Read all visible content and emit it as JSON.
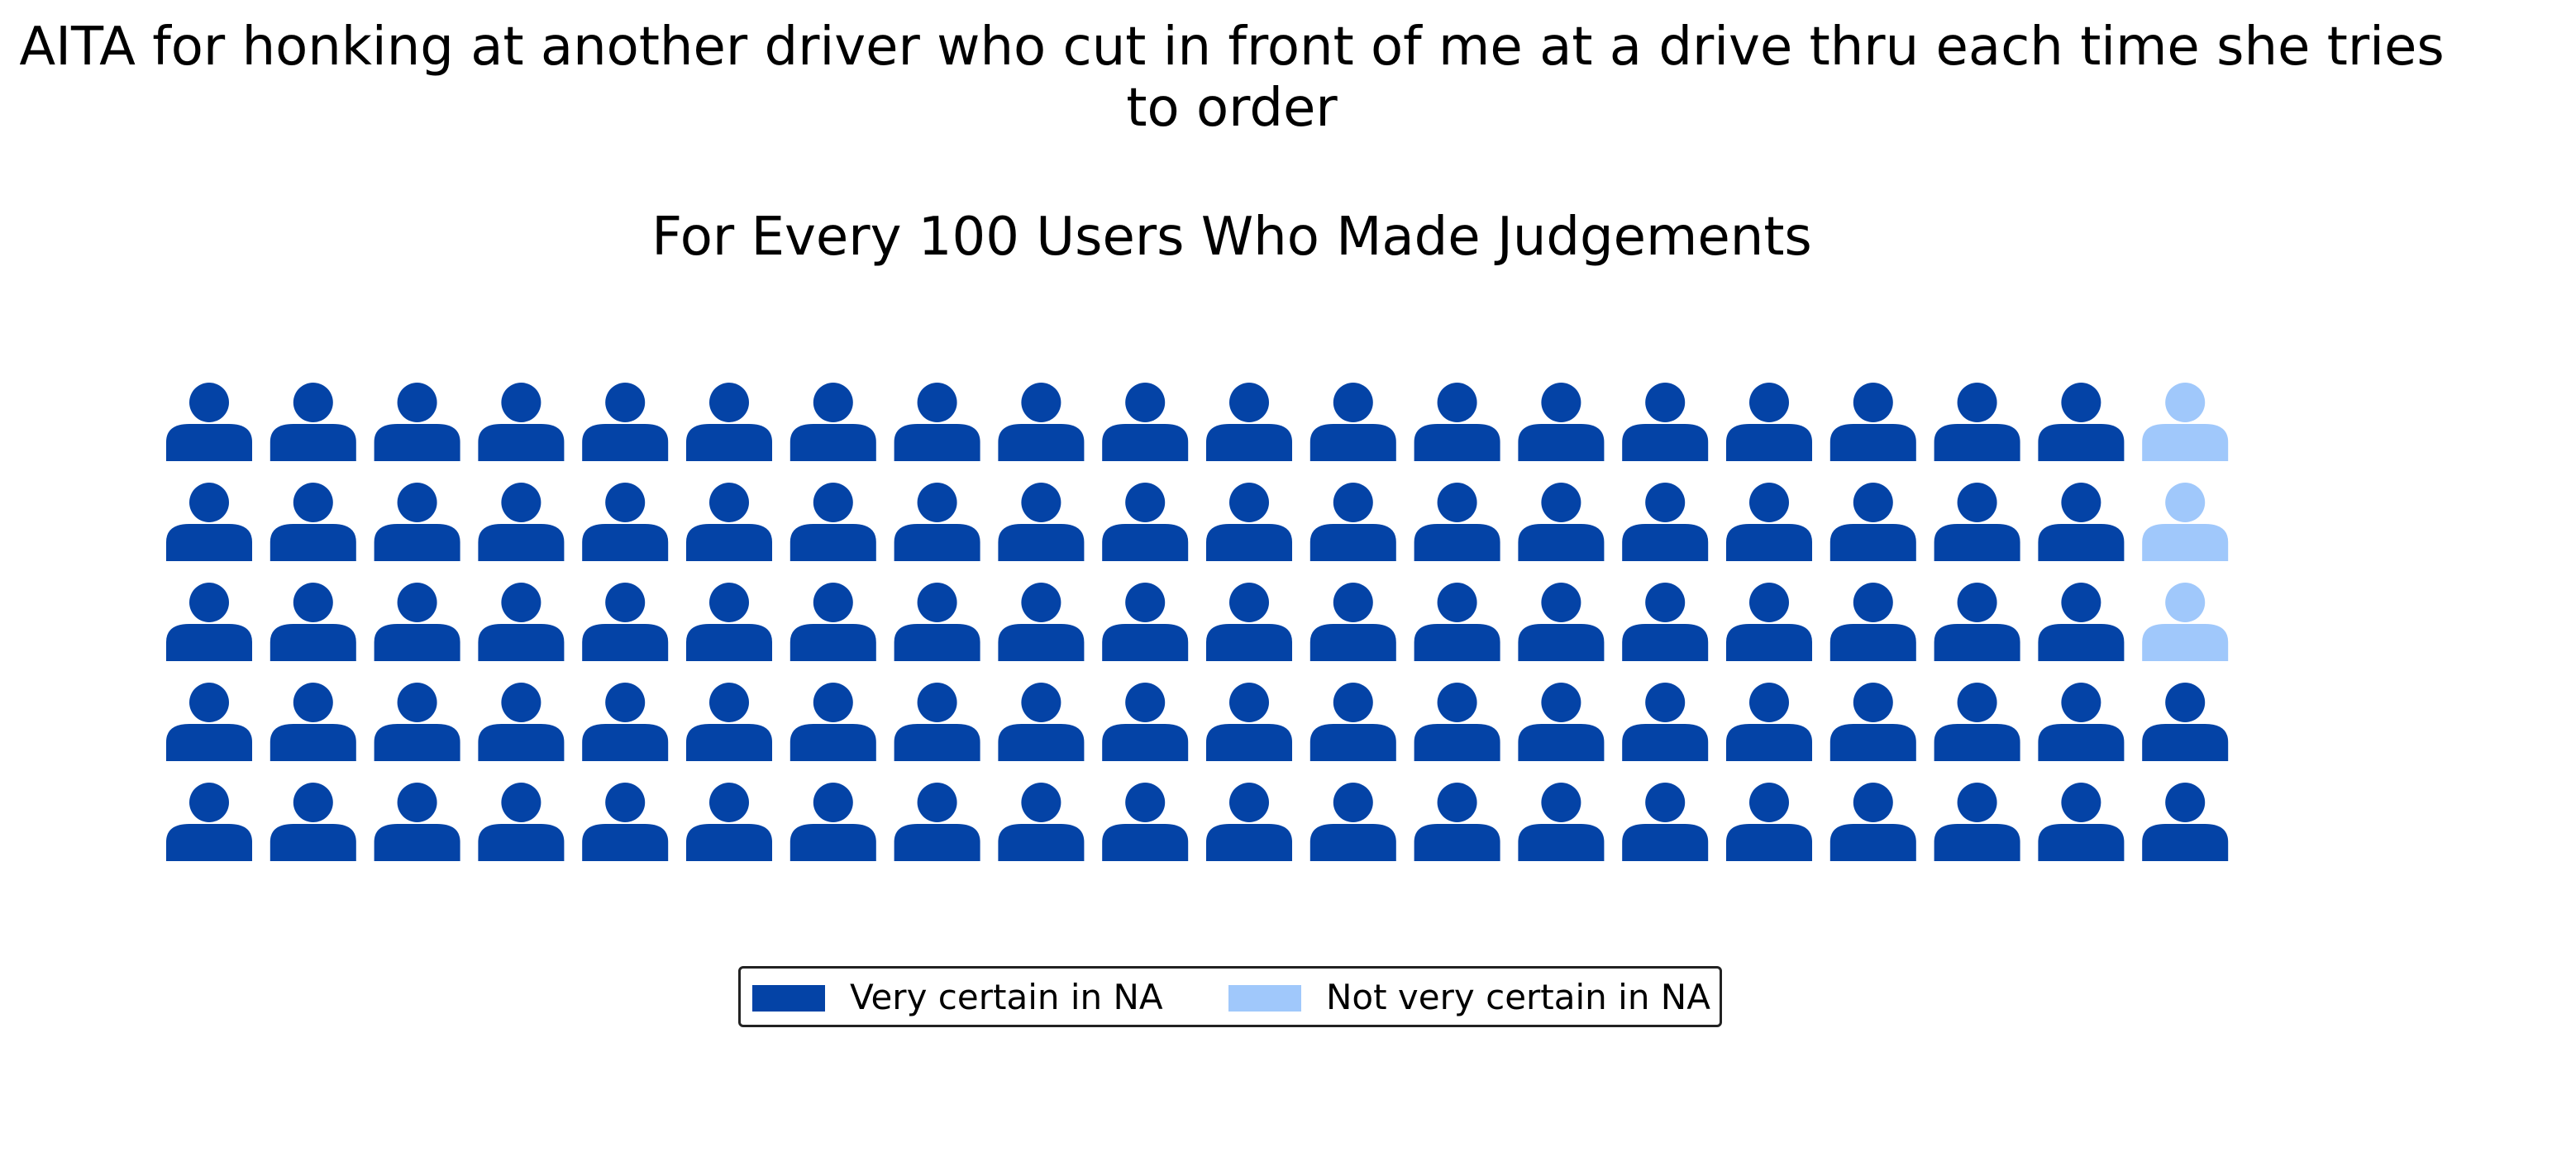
{
  "chart_data": {
    "type": "waffle",
    "title": "AITA for honking at another driver who cut in front of me at a drive thru each time she tries to order",
    "subtitle": "For Every 100 Users Who Made Judgements",
    "rows": 5,
    "columns": 20,
    "total": 100,
    "fill_order": "column-major, bottom row first, left to right",
    "icon": "person-icon",
    "series": [
      {
        "name": "Very certain in NA",
        "value": 97,
        "color": "#0443a6"
      },
      {
        "name": "Not very certain in NA",
        "value": 3,
        "color": "#a0c8fb"
      }
    ],
    "legend_position": "bottom-center"
  }
}
